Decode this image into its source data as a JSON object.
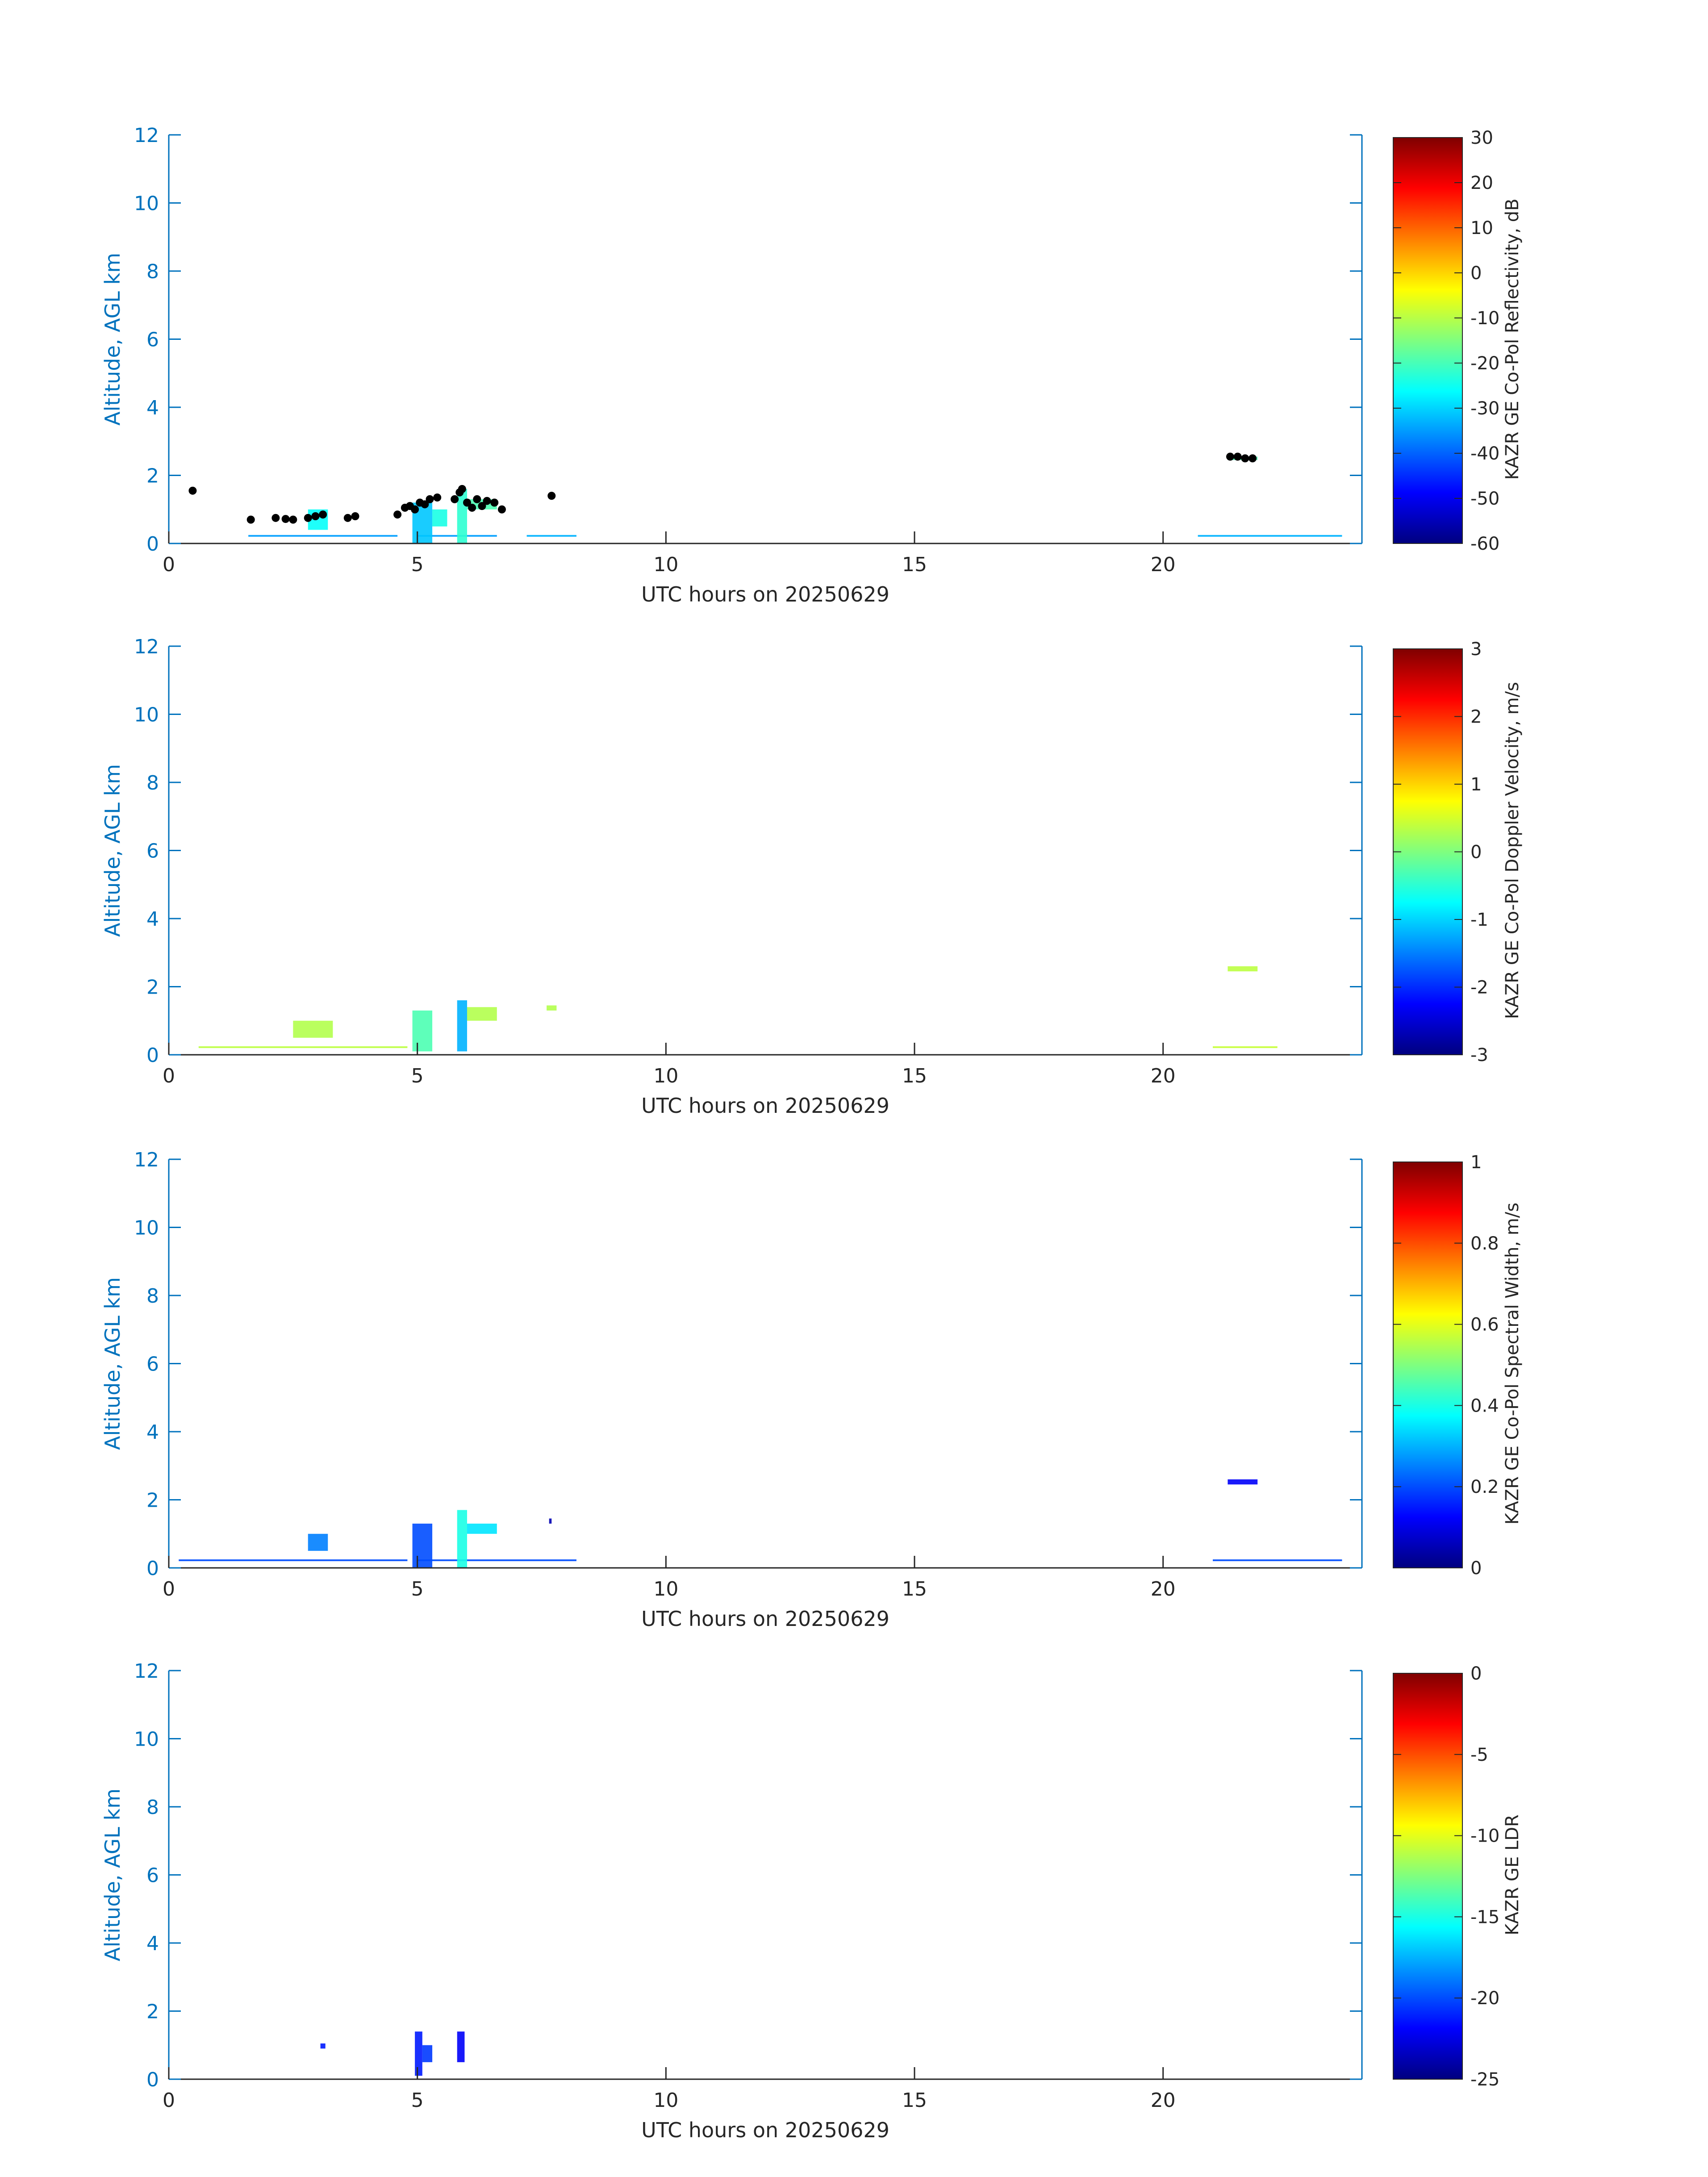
{
  "colors": {
    "axis": "#0072BD",
    "text": "#262626",
    "overlay_points": "#000000",
    "colormap": [
      "#00007f",
      "#0000ff",
      "#007fff",
      "#00ffff",
      "#7fff7f",
      "#ffff00",
      "#ff7f00",
      "#ff0000",
      "#7f0000"
    ]
  },
  "chart_data": [
    {
      "type": "heatmap",
      "xlabel": "UTC hours on 20250629",
      "ylabel": "Altitude, AGL km",
      "xlim": [
        0,
        24
      ],
      "ylim": [
        0,
        12
      ],
      "xticks": [
        0,
        5,
        10,
        15,
        20
      ],
      "yticks": [
        0,
        2,
        4,
        6,
        8,
        10,
        12
      ],
      "colorbar": {
        "label": "KAZR GE Co-Pol Reflectivity, dB",
        "range": [
          -60,
          30
        ],
        "ticks": [
          -60,
          -50,
          -40,
          -30,
          -20,
          -10,
          0,
          10,
          20,
          30
        ]
      },
      "echoes": [
        {
          "t": [
            1.6,
            4.6
          ],
          "z": [
            0.2,
            0.25
          ],
          "c": 0.28
        },
        {
          "t": [
            5.0,
            6.6
          ],
          "z": [
            0.2,
            0.25
          ],
          "c": 0.28
        },
        {
          "t": [
            7.2,
            8.2
          ],
          "z": [
            0.2,
            0.25
          ],
          "c": 0.3
        },
        {
          "t": [
            20.7,
            23.6
          ],
          "z": [
            0.2,
            0.25
          ],
          "c": 0.3
        },
        {
          "t": [
            2.8,
            3.2
          ],
          "z": [
            0.4,
            1.0
          ],
          "c": 0.38
        },
        {
          "t": [
            4.9,
            5.3
          ],
          "z": [
            0.0,
            1.2
          ],
          "c": 0.32
        },
        {
          "t": [
            5.3,
            5.6
          ],
          "z": [
            0.5,
            1.0
          ],
          "c": 0.4
        },
        {
          "t": [
            5.8,
            6.0
          ],
          "z": [
            0.0,
            1.6
          ],
          "c": 0.42
        },
        {
          "t": [
            6.0,
            6.6
          ],
          "z": [
            1.0,
            1.3
          ],
          "c": 0.45
        },
        {
          "t": [
            21.3,
            21.9
          ],
          "z": [
            2.45,
            2.55
          ],
          "c": 0.45
        }
      ],
      "overlay_points": [
        [
          0.48,
          1.55
        ],
        [
          1.65,
          0.7
        ],
        [
          2.15,
          0.75
        ],
        [
          2.35,
          0.72
        ],
        [
          2.5,
          0.7
        ],
        [
          2.8,
          0.75
        ],
        [
          2.95,
          0.8
        ],
        [
          3.1,
          0.85
        ],
        [
          3.6,
          0.75
        ],
        [
          3.75,
          0.8
        ],
        [
          4.6,
          0.85
        ],
        [
          4.75,
          1.05
        ],
        [
          4.85,
          1.1
        ],
        [
          4.95,
          1.0
        ],
        [
          5.05,
          1.2
        ],
        [
          5.15,
          1.15
        ],
        [
          5.25,
          1.3
        ],
        [
          5.4,
          1.35
        ],
        [
          5.75,
          1.3
        ],
        [
          5.85,
          1.5
        ],
        [
          5.9,
          1.6
        ],
        [
          6.0,
          1.2
        ],
        [
          6.1,
          1.05
        ],
        [
          6.2,
          1.3
        ],
        [
          6.3,
          1.1
        ],
        [
          6.4,
          1.25
        ],
        [
          6.55,
          1.2
        ],
        [
          6.7,
          1.0
        ],
        [
          7.7,
          1.4
        ],
        [
          21.35,
          2.55
        ],
        [
          21.5,
          2.55
        ],
        [
          21.65,
          2.5
        ],
        [
          21.8,
          2.5
        ]
      ]
    },
    {
      "type": "heatmap",
      "xlabel": "UTC hours on 20250629",
      "ylabel": "Altitude, AGL km",
      "xlim": [
        0,
        24
      ],
      "ylim": [
        0,
        12
      ],
      "xticks": [
        0,
        5,
        10,
        15,
        20
      ],
      "yticks": [
        0,
        2,
        4,
        6,
        8,
        10,
        12
      ],
      "colorbar": {
        "label": "KAZR GE Co-Pol Doppler Velocity, m/s",
        "range": [
          -3,
          3
        ],
        "ticks": [
          -3,
          -2,
          -1,
          0,
          1,
          2,
          3
        ]
      },
      "echoes": [
        {
          "t": [
            0.6,
            4.8
          ],
          "z": [
            0.2,
            0.25
          ],
          "c": 0.56
        },
        {
          "t": [
            2.5,
            3.3
          ],
          "z": [
            0.5,
            1.0
          ],
          "c": 0.55
        },
        {
          "t": [
            4.9,
            5.3
          ],
          "z": [
            0.1,
            1.3
          ],
          "c": 0.45
        },
        {
          "t": [
            5.8,
            6.0
          ],
          "z": [
            0.1,
            1.6
          ],
          "c": 0.3
        },
        {
          "t": [
            6.0,
            6.6
          ],
          "z": [
            1.0,
            1.4
          ],
          "c": 0.55
        },
        {
          "t": [
            7.6,
            7.8
          ],
          "z": [
            1.3,
            1.45
          ],
          "c": 0.55
        },
        {
          "t": [
            21.3,
            21.9
          ],
          "z": [
            2.45,
            2.6
          ],
          "c": 0.56
        },
        {
          "t": [
            21.0,
            22.3
          ],
          "z": [
            0.2,
            0.25
          ],
          "c": 0.57
        }
      ]
    },
    {
      "type": "heatmap",
      "xlabel": "UTC hours on 20250629",
      "ylabel": "Altitude, AGL km",
      "xlim": [
        0,
        24
      ],
      "ylim": [
        0,
        12
      ],
      "xticks": [
        0,
        5,
        10,
        15,
        20
      ],
      "yticks": [
        0,
        2,
        4,
        6,
        8,
        10,
        12
      ],
      "colorbar": {
        "label": "KAZR GE Co-Pol Spectral Width, m/s",
        "range": [
          0,
          1
        ],
        "ticks": [
          0,
          0.2,
          0.4,
          0.6,
          0.8,
          1
        ]
      },
      "echoes": [
        {
          "t": [
            0.2,
            4.8
          ],
          "z": [
            0.2,
            0.25
          ],
          "c": 0.2
        },
        {
          "t": [
            5.0,
            8.2
          ],
          "z": [
            0.2,
            0.25
          ],
          "c": 0.2
        },
        {
          "t": [
            2.8,
            3.2
          ],
          "z": [
            0.5,
            1.0
          ],
          "c": 0.25
        },
        {
          "t": [
            4.9,
            5.3
          ],
          "z": [
            0.0,
            1.3
          ],
          "c": 0.2
        },
        {
          "t": [
            5.8,
            6.0
          ],
          "z": [
            0.0,
            1.7
          ],
          "c": 0.4
        },
        {
          "t": [
            6.0,
            6.6
          ],
          "z": [
            1.0,
            1.3
          ],
          "c": 0.35
        },
        {
          "t": [
            7.65,
            7.7
          ],
          "z": [
            1.3,
            1.45
          ],
          "c": 0.05
        },
        {
          "t": [
            21.3,
            21.9
          ],
          "z": [
            2.45,
            2.6
          ],
          "c": 0.12
        },
        {
          "t": [
            21.0,
            23.6
          ],
          "z": [
            0.2,
            0.25
          ],
          "c": 0.2
        }
      ]
    },
    {
      "type": "heatmap",
      "xlabel": "UTC hours on 20250629",
      "ylabel": "Altitude, AGL km",
      "xlim": [
        0,
        24
      ],
      "ylim": [
        0,
        12
      ],
      "xticks": [
        0,
        5,
        10,
        15,
        20
      ],
      "yticks": [
        0,
        2,
        4,
        6,
        8,
        10,
        12
      ],
      "colorbar": {
        "label": "KAZR GE LDR",
        "range": [
          -25,
          0
        ],
        "ticks": [
          -25,
          -20,
          -15,
          -10,
          -5,
          0
        ]
      },
      "echoes": [
        {
          "t": [
            3.05,
            3.15
          ],
          "z": [
            0.9,
            1.05
          ],
          "c": 0.15
        },
        {
          "t": [
            4.95,
            5.1
          ],
          "z": [
            0.1,
            1.4
          ],
          "c": 0.15
        },
        {
          "t": [
            5.1,
            5.3
          ],
          "z": [
            0.5,
            1.0
          ],
          "c": 0.18
        },
        {
          "t": [
            5.8,
            5.95
          ],
          "z": [
            0.5,
            1.4
          ],
          "c": 0.12
        }
      ]
    }
  ]
}
